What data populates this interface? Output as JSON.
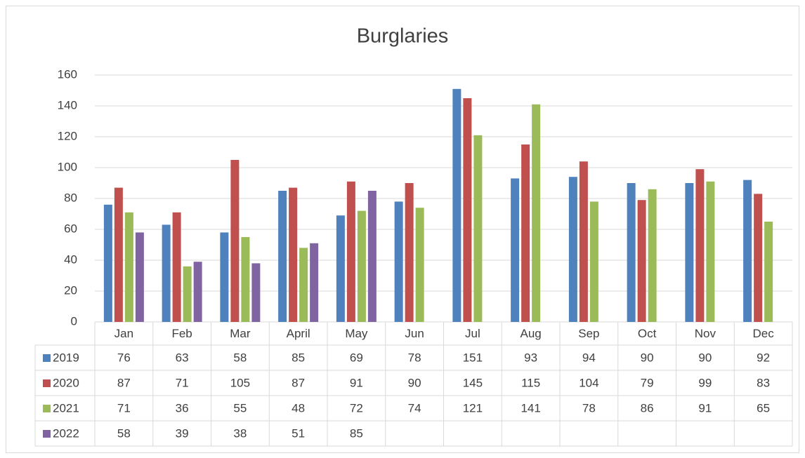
{
  "chart_data": {
    "type": "bar",
    "title": "Burglaries",
    "categories": [
      "Jan",
      "Feb",
      "Mar",
      "April",
      "May",
      "Jun",
      "Jul",
      "Aug",
      "Sep",
      "Oct",
      "Nov",
      "Dec"
    ],
    "series": [
      {
        "name": "2019",
        "color": "#4f81bd",
        "values": [
          76,
          63,
          58,
          85,
          69,
          78,
          151,
          93,
          94,
          90,
          90,
          92
        ]
      },
      {
        "name": "2020",
        "color": "#c0504d",
        "values": [
          87,
          71,
          105,
          87,
          91,
          90,
          145,
          115,
          104,
          79,
          99,
          83
        ]
      },
      {
        "name": "2021",
        "color": "#9bbb59",
        "values": [
          71,
          36,
          55,
          48,
          72,
          74,
          121,
          141,
          78,
          86,
          91,
          65
        ]
      },
      {
        "name": "2022",
        "color": "#8064a2",
        "values": [
          58,
          39,
          38,
          51,
          85,
          null,
          null,
          null,
          null,
          null,
          null,
          null
        ]
      }
    ],
    "ylim": [
      0,
      160
    ],
    "yticks": [
      0,
      20,
      40,
      60,
      80,
      100,
      120,
      140,
      160
    ],
    "grid": true
  }
}
